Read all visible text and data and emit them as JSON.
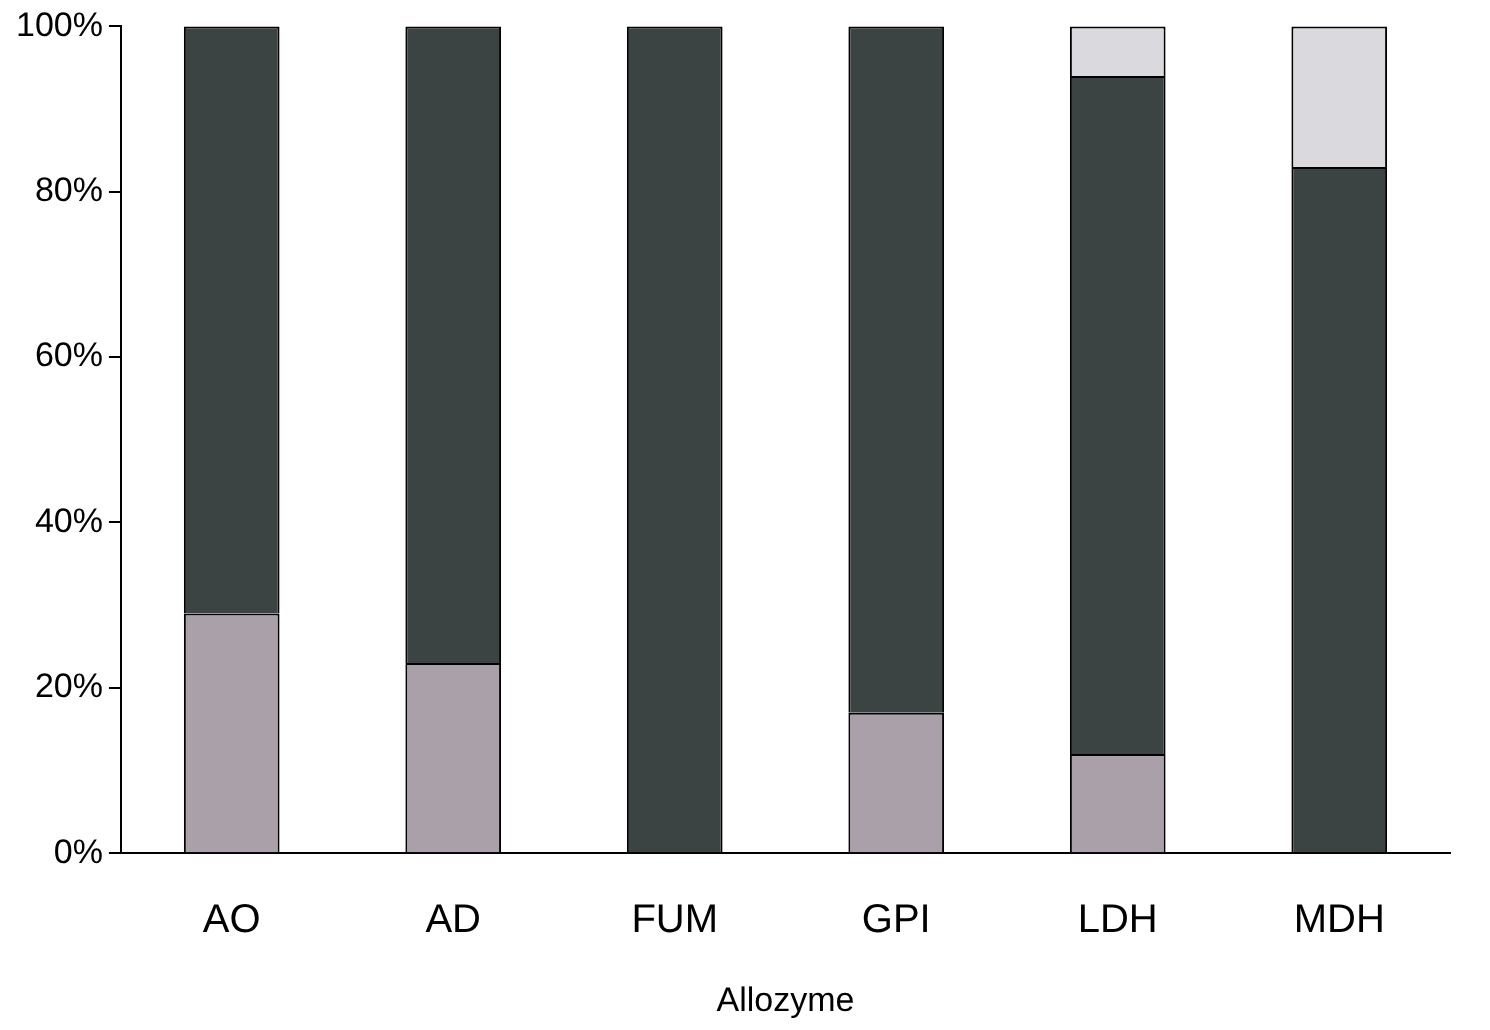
{
  "chart_data": {
    "type": "bar",
    "stacked": true,
    "xlabel": "Allozyme",
    "categories": [
      "AO",
      "AD",
      "FUM",
      "GPI",
      "LDH",
      "MDH"
    ],
    "series": [
      {
        "color": "#aaa0aa",
        "values": [
          29,
          23,
          0,
          17,
          12,
          0
        ]
      },
      {
        "color": "#3c4443",
        "values": [
          71,
          77,
          100,
          83,
          82,
          83
        ]
      },
      {
        "color": "#d9d9de",
        "values": [
          0,
          0,
          0,
          0,
          6,
          17
        ]
      }
    ],
    "ylim": [
      0,
      100
    ],
    "yticks": [
      {
        "value": 0,
        "label": "0%"
      },
      {
        "value": 20,
        "label": "20%"
      },
      {
        "value": 40,
        "label": "40%"
      },
      {
        "value": 60,
        "label": "60%"
      },
      {
        "value": 80,
        "label": "80%"
      },
      {
        "value": 100,
        "label": "100%"
      }
    ]
  }
}
